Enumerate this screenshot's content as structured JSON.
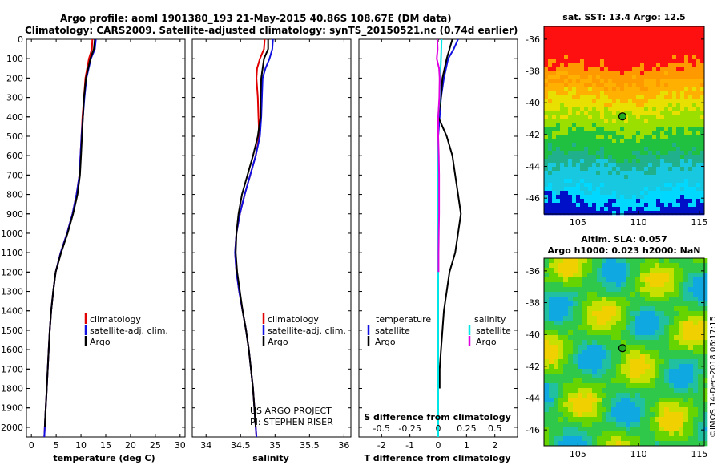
{
  "header": {
    "title_line1": "Argo profile: aoml 1901380_193 21-May-2015 40.86S 108.67E (DM data)",
    "title_line2": "Climatology: CARS2009. Satellite-adjusted climatology: synTS_20150521.nc (0.74d earlier)"
  },
  "colors": {
    "climatology": "#e00000",
    "satellite": "#1010e0",
    "argo": "#000000",
    "salinity_satellite": "#00e5e5",
    "salinity_argo": "#e000e0"
  },
  "chart_data": [
    {
      "type": "line",
      "name": "temperature",
      "title": "",
      "xlabel": "temperature (deg C)",
      "ylabel": "",
      "xlim": [
        -1,
        31
      ],
      "ylim": [
        2050,
        0
      ],
      "xticks": [
        "0",
        "5",
        "10",
        "15",
        "20",
        "25",
        "30"
      ],
      "yticks": [
        "0",
        "100",
        "200",
        "300",
        "400",
        "500",
        "600",
        "700",
        "800",
        "900",
        "1000",
        "1100",
        "1200",
        "1300",
        "1400",
        "1500",
        "1600",
        "1700",
        "1800",
        "1900",
        "2000"
      ],
      "legend": [
        "climatology",
        "satellite-adj. clim.",
        "Argo"
      ],
      "legend_position": "lower-right",
      "series": [
        {
          "name": "climatology",
          "color": "#e00000",
          "points": [
            [
              12.3,
              0
            ],
            [
              12.2,
              50
            ],
            [
              11.6,
              100
            ],
            [
              10.9,
              200
            ],
            [
              10.6,
              300
            ],
            [
              10.3,
              400
            ],
            [
              10.1,
              500
            ],
            [
              9.9,
              600
            ],
            [
              9.7,
              700
            ],
            [
              9.1,
              800
            ],
            [
              8.3,
              900
            ],
            [
              7.2,
              1000
            ],
            [
              5.9,
              1100
            ],
            [
              4.9,
              1200
            ],
            [
              4.4,
              1300
            ],
            [
              4.0,
              1400
            ],
            [
              3.7,
              1500
            ],
            [
              3.5,
              1600
            ],
            [
              3.3,
              1700
            ],
            [
              3.1,
              1800
            ],
            [
              2.9,
              1900
            ],
            [
              2.7,
              2000
            ],
            [
              2.6,
              2050
            ]
          ]
        },
        {
          "name": "satellite-adj. clim.",
          "color": "#1010e0",
          "points": [
            [
              13.0,
              0
            ],
            [
              12.8,
              50
            ],
            [
              12.0,
              100
            ],
            [
              11.1,
              200
            ],
            [
              10.7,
              300
            ],
            [
              10.4,
              400
            ],
            [
              10.1,
              500
            ],
            [
              9.9,
              600
            ],
            [
              9.7,
              700
            ],
            [
              9.1,
              800
            ],
            [
              8.3,
              900
            ],
            [
              7.2,
              1000
            ],
            [
              5.9,
              1100
            ],
            [
              4.9,
              1200
            ],
            [
              4.4,
              1300
            ],
            [
              4.0,
              1400
            ],
            [
              3.7,
              1500
            ],
            [
              3.5,
              1600
            ],
            [
              3.3,
              1700
            ],
            [
              3.1,
              1800
            ],
            [
              2.9,
              1900
            ],
            [
              2.7,
              2000
            ],
            [
              2.6,
              2050
            ]
          ]
        },
        {
          "name": "Argo",
          "color": "#000000",
          "points": [
            [
              12.8,
              0
            ],
            [
              12.6,
              50
            ],
            [
              11.9,
              100
            ],
            [
              11.0,
              200
            ],
            [
              10.6,
              300
            ],
            [
              10.4,
              400
            ],
            [
              10.2,
              500
            ],
            [
              10.0,
              600
            ],
            [
              9.8,
              700
            ],
            [
              9.3,
              800
            ],
            [
              8.4,
              900
            ],
            [
              7.3,
              1000
            ],
            [
              6.0,
              1100
            ],
            [
              4.9,
              1200
            ],
            [
              4.4,
              1300
            ],
            [
              4.0,
              1400
            ],
            [
              3.7,
              1500
            ],
            [
              3.5,
              1600
            ],
            [
              3.3,
              1700
            ],
            [
              3.1,
              1800
            ],
            [
              2.9,
              1900
            ],
            [
              2.7,
              2000
            ]
          ]
        }
      ]
    },
    {
      "type": "line",
      "name": "salinity",
      "title": "",
      "xlabel": "salinity",
      "ylabel": "",
      "xlim": [
        33.8,
        36.1
      ],
      "ylim": [
        2050,
        0
      ],
      "xticks": [
        "34",
        "34.5",
        "35",
        "35.5",
        "36"
      ],
      "legend": [
        "climatology",
        "satellite-adj. clim.",
        "Argo"
      ],
      "legend_position": "lower-right",
      "annotation": [
        "US ARGO PROJECT",
        "PI: STEPHEN RISER"
      ],
      "series": [
        {
          "name": "climatology",
          "color": "#e00000",
          "points": [
            [
              34.85,
              0
            ],
            [
              34.84,
              50
            ],
            [
              34.78,
              100
            ],
            [
              34.74,
              150
            ],
            [
              34.73,
              200
            ],
            [
              34.75,
              300
            ],
            [
              34.76,
              400
            ],
            [
              34.77,
              500
            ],
            [
              34.72,
              600
            ],
            [
              34.64,
              700
            ],
            [
              34.56,
              800
            ],
            [
              34.49,
              900
            ],
            [
              34.44,
              1000
            ],
            [
              34.42,
              1100
            ],
            [
              34.44,
              1200
            ],
            [
              34.48,
              1300
            ],
            [
              34.53,
              1400
            ],
            [
              34.58,
              1500
            ],
            [
              34.62,
              1600
            ],
            [
              34.65,
              1700
            ],
            [
              34.68,
              1800
            ],
            [
              34.7,
              1900
            ],
            [
              34.72,
              2000
            ],
            [
              34.73,
              2050
            ]
          ]
        },
        {
          "name": "satellite-adj. clim.",
          "color": "#1010e0",
          "points": [
            [
              34.97,
              0
            ],
            [
              34.96,
              50
            ],
            [
              34.92,
              100
            ],
            [
              34.86,
              150
            ],
            [
              34.82,
              200
            ],
            [
              34.81,
              300
            ],
            [
              34.8,
              400
            ],
            [
              34.78,
              500
            ],
            [
              34.72,
              600
            ],
            [
              34.64,
              700
            ],
            [
              34.56,
              800
            ],
            [
              34.49,
              900
            ],
            [
              34.44,
              1000
            ],
            [
              34.42,
              1100
            ],
            [
              34.44,
              1200
            ],
            [
              34.48,
              1300
            ],
            [
              34.53,
              1400
            ],
            [
              34.58,
              1500
            ],
            [
              34.62,
              1600
            ],
            [
              34.65,
              1700
            ],
            [
              34.68,
              1800
            ],
            [
              34.7,
              1900
            ],
            [
              34.72,
              2000
            ],
            [
              34.73,
              2050
            ]
          ]
        },
        {
          "name": "Argo",
          "color": "#000000",
          "points": [
            [
              34.9,
              0
            ],
            [
              34.9,
              50
            ],
            [
              34.84,
              100
            ],
            [
              34.82,
              150
            ],
            [
              34.8,
              200
            ],
            [
              34.79,
              300
            ],
            [
              34.79,
              400
            ],
            [
              34.75,
              500
            ],
            [
              34.68,
              600
            ],
            [
              34.6,
              700
            ],
            [
              34.52,
              800
            ],
            [
              34.47,
              900
            ],
            [
              34.44,
              1000
            ],
            [
              34.43,
              1100
            ],
            [
              34.45,
              1200
            ],
            [
              34.49,
              1300
            ],
            [
              34.53,
              1400
            ],
            [
              34.58,
              1500
            ],
            [
              34.62,
              1600
            ],
            [
              34.65,
              1700
            ],
            [
              34.68,
              1800
            ],
            [
              34.7,
              1900
            ],
            [
              34.72,
              2000
            ]
          ]
        }
      ]
    },
    {
      "type": "line",
      "name": "difference",
      "title": "",
      "xlabel": "T difference from climatology",
      "xlabel_top": "S difference from climatology",
      "ylabel": "",
      "xlim": [
        -2.8,
        2.8
      ],
      "ylim": [
        2050,
        0
      ],
      "xticks": [
        "-2",
        "-1",
        "0",
        "1",
        "2"
      ],
      "xticks_top": [
        "-0.5",
        "-0.25",
        "0",
        "0.25",
        "0.5"
      ],
      "legend_temperature": [
        "temperature",
        "satellite",
        "Argo"
      ],
      "legend_salinity": [
        "salinity",
        "satellite",
        "Argo"
      ],
      "legend_position": "lower",
      "series": [
        {
          "name": "temperature satellite",
          "color": "#1010e0",
          "points": [
            [
              0.7,
              0
            ],
            [
              0.55,
              50
            ],
            [
              0.35,
              100
            ],
            [
              0.2,
              200
            ],
            [
              0.1,
              300
            ],
            [
              0.05,
              400
            ],
            [
              0,
              500
            ],
            [
              0,
              700
            ],
            [
              0,
              1200
            ],
            [
              0,
              1400
            ]
          ]
        },
        {
          "name": "temperature Argo",
          "color": "#000000",
          "points": [
            [
              0.5,
              0
            ],
            [
              0.4,
              50
            ],
            [
              0.3,
              100
            ],
            [
              0.15,
              200
            ],
            [
              0.1,
              300
            ],
            [
              0,
              400
            ],
            [
              0.3,
              500
            ],
            [
              0.5,
              600
            ],
            [
              0.6,
              700
            ],
            [
              0.7,
              800
            ],
            [
              0.8,
              900
            ],
            [
              0.7,
              1000
            ],
            [
              0.6,
              1100
            ],
            [
              0.4,
              1200
            ],
            [
              0.3,
              1300
            ],
            [
              0.2,
              1400
            ],
            [
              0.15,
              1500
            ],
            [
              0.1,
              1600
            ],
            [
              0.05,
              1700
            ],
            [
              0.05,
              1800
            ]
          ]
        },
        {
          "name": "salinity satellite",
          "color": "#00e5e5",
          "points": [
            [
              0.12,
              0
            ],
            [
              0.11,
              50
            ],
            [
              0.1,
              100
            ],
            [
              0.07,
              200
            ],
            [
              0.05,
              300
            ],
            [
              0,
              400
            ],
            [
              0,
              2050
            ]
          ]
        },
        {
          "name": "salinity Argo",
          "color": "#e000e0",
          "points": [
            [
              -0.03,
              0
            ],
            [
              -0.02,
              50
            ],
            [
              -0.05,
              100
            ],
            [
              0.03,
              150
            ],
            [
              0.05,
              200
            ],
            [
              0.04,
              300
            ],
            [
              0,
              400
            ],
            [
              0,
              500
            ],
            [
              0.02,
              600
            ],
            [
              0.03,
              700
            ],
            [
              0.03,
              800
            ],
            [
              0.03,
              900
            ],
            [
              0.02,
              1000
            ],
            [
              0.01,
              1100
            ],
            [
              0.01,
              1200
            ]
          ]
        }
      ]
    },
    {
      "type": "heatmap",
      "name": "sst_map",
      "title": "sat. SST: 13.4 Argo: 12.5",
      "xticks": [
        "105",
        "110",
        "115"
      ],
      "yticks": [
        "-36",
        "-38",
        "-40",
        "-42",
        "-44",
        "-46"
      ],
      "xlim": [
        102.2,
        115.4
      ],
      "ylim": [
        -47.0,
        -35.2
      ],
      "marker": {
        "lon": 108.67,
        "lat": -40.86
      }
    },
    {
      "type": "heatmap",
      "name": "sla_map",
      "title_line1": "Altim. SLA: 0.057",
      "title_line2": "Argo h1000: 0.023 h2000: NaN",
      "xticks": [
        "105",
        "110",
        "115"
      ],
      "yticks": [
        "-36",
        "-38",
        "-40",
        "-42",
        "-44",
        "-46"
      ],
      "xlim": [
        102.2,
        115.4
      ],
      "ylim": [
        -47.0,
        -35.2
      ],
      "marker": {
        "lon": 108.67,
        "lat": -40.86
      }
    }
  ],
  "footer": {
    "watermark": "©IMOS 14-Dec-2018 06:17:15"
  }
}
